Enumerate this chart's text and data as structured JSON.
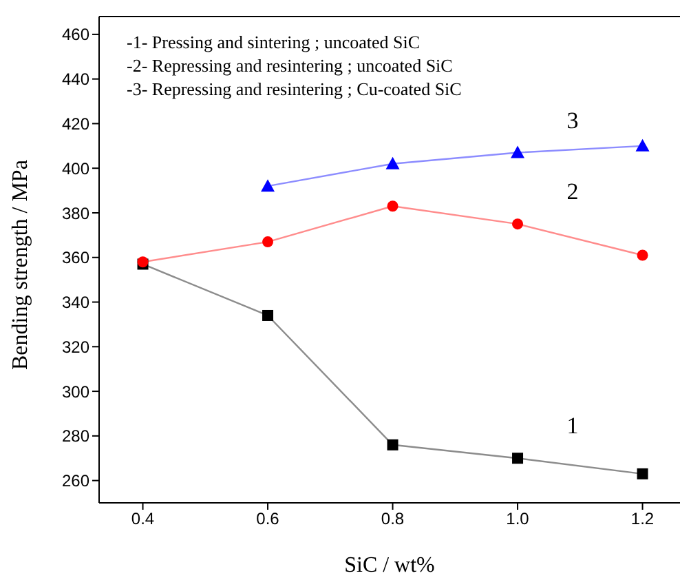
{
  "chart_data": {
    "type": "line",
    "xlabel": "SiC / wt%",
    "ylabel": "Bending strength / MPa",
    "xlim": [
      0.33,
      1.26
    ],
    "xticks": [
      {
        "value": 0.4,
        "label": "0.4"
      },
      {
        "value": 0.6,
        "label": "0.6"
      },
      {
        "value": 0.8,
        "label": "0.8"
      },
      {
        "value": 1.0,
        "label": "1.0"
      },
      {
        "value": 1.2,
        "label": "1.2"
      }
    ],
    "ylim": [
      250,
      468
    ],
    "yticks": [
      260,
      280,
      300,
      320,
      340,
      360,
      380,
      400,
      420,
      440,
      460
    ],
    "grid": false,
    "legend": false,
    "series": [
      {
        "name": "1",
        "color": "#000000",
        "marker": "square",
        "x": [
          0.4,
          0.6,
          0.8,
          1.0,
          1.2
        ],
        "values": [
          357,
          334,
          276,
          270,
          263
        ]
      },
      {
        "name": "2",
        "color": "#ff0000",
        "marker": "circle",
        "x": [
          0.4,
          0.6,
          0.8,
          1.0,
          1.2
        ],
        "values": [
          358,
          367,
          383,
          375,
          361
        ]
      },
      {
        "name": "3",
        "color": "#0000ff",
        "marker": "triangle",
        "x": [
          0.6,
          0.8,
          1.0,
          1.2
        ],
        "values": [
          392,
          402,
          407,
          410
        ]
      }
    ],
    "annotations": [
      "-1- Pressing and sintering ; uncoated SiC",
      "-2- Repressing and resintering ; uncoated SiC",
      "-3- Repressing and resintering ; Cu-coated SiC"
    ]
  }
}
